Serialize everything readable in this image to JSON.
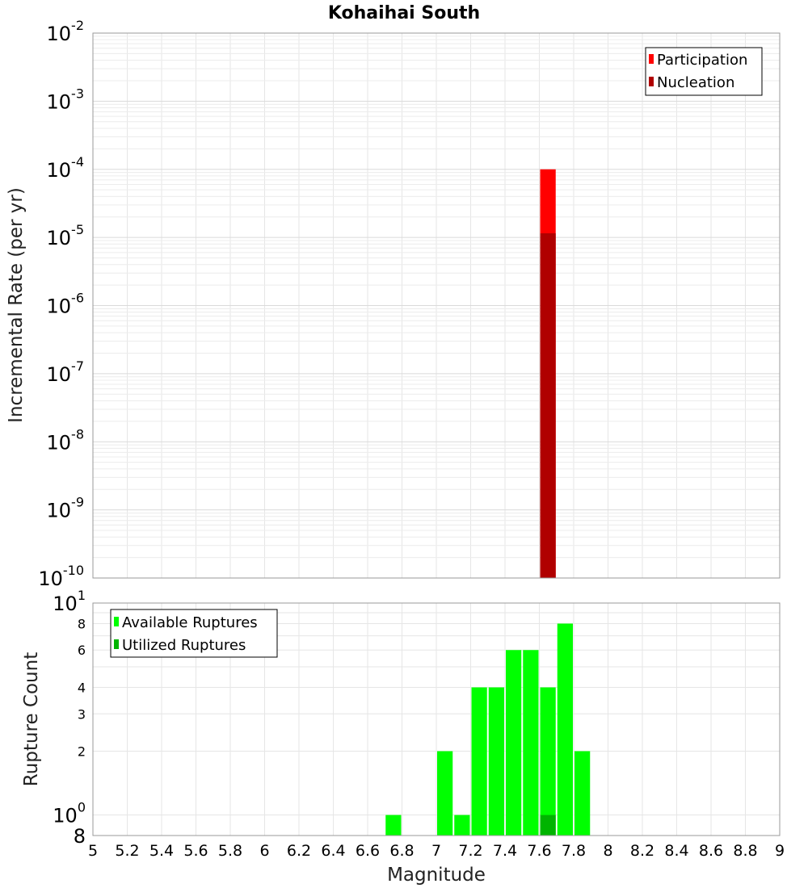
{
  "title": "Kohaihai South",
  "chart_data": [
    {
      "type": "bar",
      "ylabel": "Incremental Rate (per yr)",
      "yscale": "log",
      "ylim": [
        1e-10,
        0.01
      ],
      "xlim": [
        5,
        9
      ],
      "ytick_labels": [
        {
          "base": "10",
          "exp": "-10"
        },
        {
          "base": "10",
          "exp": "-9"
        },
        {
          "base": "10",
          "exp": "-8"
        },
        {
          "base": "10",
          "exp": "-7"
        },
        {
          "base": "10",
          "exp": "-6"
        },
        {
          "base": "10",
          "exp": "-5"
        },
        {
          "base": "10",
          "exp": "-4"
        },
        {
          "base": "10",
          "exp": "-3"
        },
        {
          "base": "10",
          "exp": "-2"
        }
      ],
      "series": [
        {
          "name": "Participation",
          "color": "#ff0000",
          "x": [
            7.65
          ],
          "values": [
            0.0001
          ]
        },
        {
          "name": "Nucleation",
          "color": "#b00000",
          "x": [
            7.65
          ],
          "values": [
            1.15e-05
          ]
        }
      ],
      "legend": "top-right",
      "grid": true
    },
    {
      "type": "bar",
      "xlabel": "Magnitude",
      "ylabel": "Rupture Count",
      "yscale": "log",
      "ylim": [
        0.8,
        10
      ],
      "xlim": [
        5,
        9
      ],
      "xticks": [
        "5",
        "5.2",
        "5.4",
        "5.6",
        "5.8",
        "6",
        "6.2",
        "6.4",
        "6.6",
        "6.8",
        "7",
        "7.2",
        "7.4",
        "7.6",
        "7.8",
        "8",
        "8.2",
        "8.4",
        "8.6",
        "8.8",
        "9"
      ],
      "ytick_labels": [
        {
          "v": 0.8,
          "text": "8",
          "exp": ""
        },
        {
          "v": 1,
          "text": "10",
          "exp": "0"
        },
        {
          "v": 2,
          "text": "2",
          "exp": ""
        },
        {
          "v": 3,
          "text": "3",
          "exp": ""
        },
        {
          "v": 4,
          "text": "4",
          "exp": ""
        },
        {
          "v": 6,
          "text": "6",
          "exp": ""
        },
        {
          "v": 8,
          "text": "8",
          "exp": ""
        },
        {
          "v": 10,
          "text": "10",
          "exp": "1"
        }
      ],
      "series": [
        {
          "name": "Available Ruptures",
          "color": "#00ff00",
          "x": [
            6.75,
            7.05,
            7.15,
            7.25,
            7.35,
            7.45,
            7.55,
            7.65,
            7.75,
            7.85
          ],
          "values": [
            1,
            2,
            1,
            4,
            4,
            6,
            6,
            4,
            8,
            2
          ]
        },
        {
          "name": "Utilized Ruptures",
          "color": "#00b400",
          "x": [
            7.65
          ],
          "values": [
            1
          ]
        }
      ],
      "legend": "top-left",
      "grid": true
    }
  ]
}
